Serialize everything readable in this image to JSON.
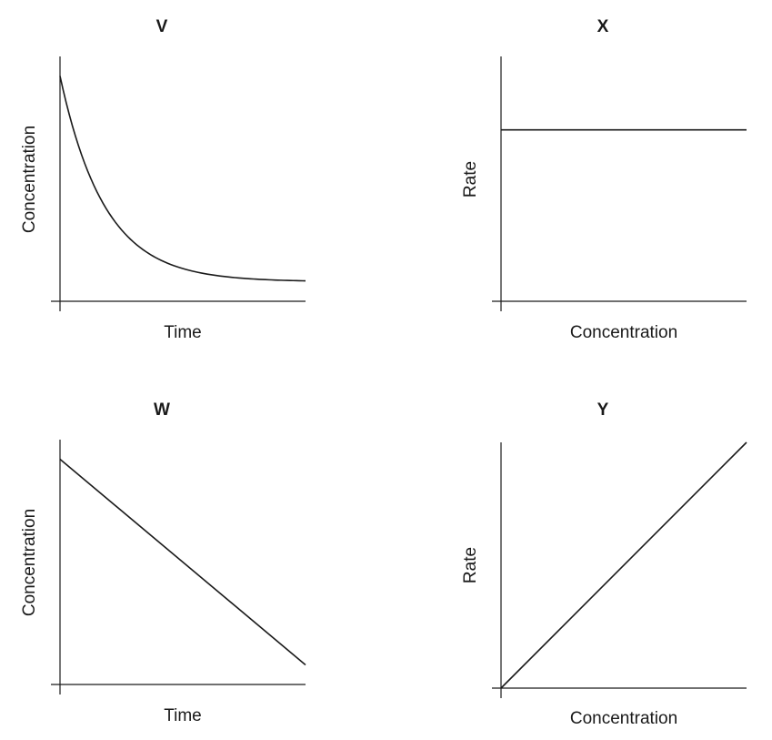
{
  "chart_data": [
    {
      "id": "V",
      "type": "line",
      "title": "V",
      "xlabel": "Time",
      "ylabel": "Concentration",
      "xlim": [
        0,
        1
      ],
      "ylim": [
        0,
        1
      ],
      "grid": false,
      "series": [
        {
          "shape": "exponential-decay",
          "x": [
            0,
            0.1,
            0.2,
            0.3,
            0.4,
            0.5,
            0.6,
            0.7,
            0.8,
            0.9,
            1.0
          ],
          "y": [
            0.92,
            0.56,
            0.36,
            0.24,
            0.17,
            0.13,
            0.11,
            0.1,
            0.09,
            0.085,
            0.08
          ]
        }
      ]
    },
    {
      "id": "X",
      "type": "line",
      "title": "X",
      "xlabel": "Concentration",
      "ylabel": "Rate",
      "xlim": [
        0,
        1
      ],
      "ylim": [
        0,
        1
      ],
      "grid": false,
      "series": [
        {
          "shape": "constant",
          "x": [
            0,
            1
          ],
          "y": [
            0.7,
            0.7
          ]
        }
      ]
    },
    {
      "id": "W",
      "type": "line",
      "title": "W",
      "xlabel": "Time",
      "ylabel": "Concentration",
      "xlim": [
        0,
        1
      ],
      "ylim": [
        0,
        1
      ],
      "grid": false,
      "series": [
        {
          "shape": "linear-decrease",
          "x": [
            0,
            1
          ],
          "y": [
            0.92,
            0.08
          ]
        }
      ]
    },
    {
      "id": "Y",
      "type": "line",
      "title": "Y",
      "xlabel": "Concentration",
      "ylabel": "Rate",
      "xlim": [
        0,
        1
      ],
      "ylim": [
        0,
        1
      ],
      "grid": false,
      "series": [
        {
          "shape": "linear-increase",
          "x": [
            0,
            1
          ],
          "y": [
            0,
            1
          ]
        }
      ]
    }
  ]
}
